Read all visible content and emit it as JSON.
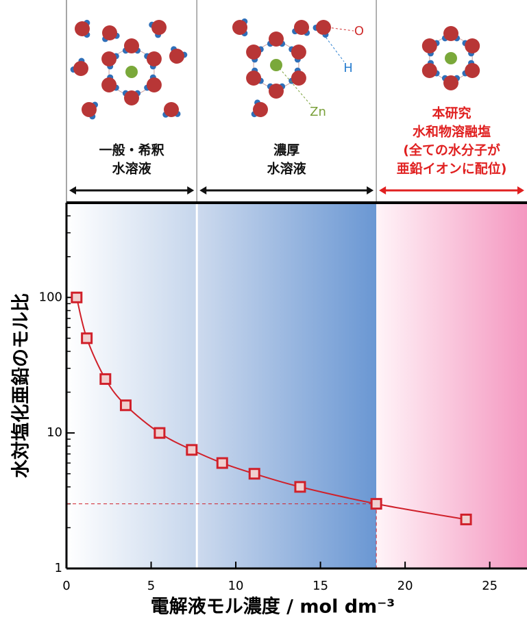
{
  "chart_data": {
    "type": "line",
    "x_label": "電解液モル濃度 / mol dm⁻³",
    "y_label": "水対塩化亜鉛のモル比",
    "x": [
      0.6,
      1.2,
      2.3,
      3.5,
      5.5,
      7.4,
      9.2,
      11.1,
      13.8,
      18.3,
      23.6
    ],
    "values": [
      100,
      50,
      25,
      16,
      10,
      7.5,
      6,
      5,
      4,
      3,
      2.3
    ],
    "color": "#d0202a",
    "xlim": [
      0,
      27.2
    ],
    "ylim": [
      1,
      500
    ],
    "xticks": [
      0,
      5,
      10,
      15,
      20,
      25
    ],
    "yticks": [
      1,
      10,
      100
    ],
    "log_y": true,
    "minor_ticks": true,
    "dashed_guides": [
      {
        "x": 18.3,
        "y": 3
      }
    ],
    "regions": [
      {
        "xlim": [
          0,
          7.7
        ],
        "colors": [
          "#ffffff",
          "#c6d6ec"
        ],
        "label": [
          "一般・希釈",
          "水溶液"
        ],
        "label_color": "#111111"
      },
      {
        "xlim": [
          7.7,
          18.3
        ],
        "colors": [
          "#cddaee",
          "#6a97d3"
        ],
        "label": [
          "濃厚",
          "水溶液"
        ],
        "label_color": "#111111"
      },
      {
        "xlim": [
          18.3,
          27.2
        ],
        "colors": [
          "#fff4f8",
          "#f497c0"
        ],
        "label": [
          "本研究",
          "水和物溶融塩",
          "(全ての水分子が",
          "亜鉛イオンに配位)"
        ],
        "label_color": "#e02020"
      }
    ],
    "atom_labels": [
      {
        "text": "O",
        "color": "#d03030"
      },
      {
        "text": "H",
        "color": "#2a7fd0"
      },
      {
        "text": "Zn",
        "color": "#7aa03a"
      }
    ]
  }
}
